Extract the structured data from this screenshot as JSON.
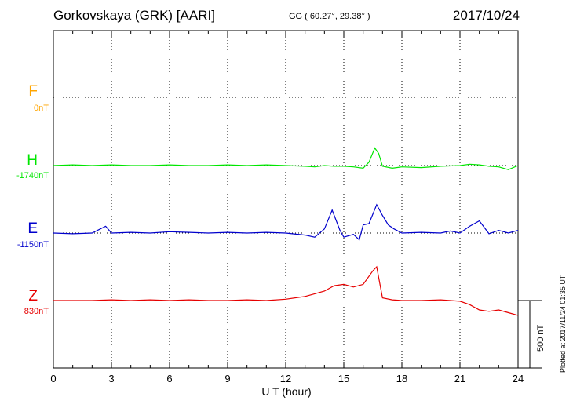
{
  "header": {
    "title": "Gorkovskaya (GRK)  [AARI]",
    "coords": "GG ( 60.27°,  29.38° )",
    "date": "2017/10/24"
  },
  "components": [
    {
      "letter": "F",
      "baseline": "0nT",
      "color": "#ffa500"
    },
    {
      "letter": "H",
      "baseline": "-1740nT",
      "color": "#00e600"
    },
    {
      "letter": "E",
      "baseline": "-1150nT",
      "color": "#0000cc"
    },
    {
      "letter": "Z",
      "baseline": "830nT",
      "color": "#e60000"
    }
  ],
  "footer": {
    "xlabel": "U T (hour)",
    "plotted": "Plotted at 2017/11/24 01:35 UT",
    "scale": "500 nT"
  },
  "chart_data": {
    "type": "line",
    "title": "Gorkovskaya (GRK)  [AARI]",
    "xlabel": "U T (hour)",
    "ylabel": "",
    "xlim": [
      0,
      24
    ],
    "xticks": [
      0,
      3,
      6,
      9,
      12,
      15,
      18,
      21,
      24
    ],
    "grid": true,
    "scale_bar_nT": 500,
    "series": [
      {
        "name": "H",
        "color": "#00e600",
        "x": [
          0,
          1,
          2,
          3,
          4,
          5,
          6,
          7,
          8,
          9,
          10,
          11,
          12,
          13,
          13.5,
          14,
          14.5,
          15,
          15.5,
          16,
          16.3,
          16.6,
          16.8,
          17,
          17.5,
          18,
          19,
          20,
          21,
          21.5,
          22,
          22.5,
          23,
          23.5,
          24
        ],
        "y": [
          -1740,
          -1735,
          -1740,
          -1735,
          -1740,
          -1740,
          -1735,
          -1740,
          -1740,
          -1735,
          -1740,
          -1735,
          -1740,
          -1745,
          -1750,
          -1740,
          -1745,
          -1745,
          -1750,
          -1760,
          -1715,
          -1610,
          -1650,
          -1745,
          -1760,
          -1750,
          -1755,
          -1745,
          -1740,
          -1730,
          -1735,
          -1745,
          -1750,
          -1770,
          -1740
        ]
      },
      {
        "name": "E",
        "color": "#0000cc",
        "x": [
          0,
          1,
          2,
          2.7,
          3,
          4,
          5,
          6,
          7,
          8,
          9,
          10,
          11,
          12,
          13,
          13.5,
          14,
          14.4,
          14.8,
          15,
          15.5,
          15.8,
          16,
          16.3,
          16.7,
          17,
          17.3,
          17.6,
          18,
          19,
          20,
          20.5,
          21,
          21.5,
          22,
          22.5,
          23,
          23.5,
          24
        ],
        "y": [
          -1150,
          -1155,
          -1150,
          -1100,
          -1150,
          -1145,
          -1150,
          -1140,
          -1145,
          -1150,
          -1145,
          -1150,
          -1145,
          -1150,
          -1165,
          -1180,
          -1120,
          -980,
          -1130,
          -1180,
          -1160,
          -1200,
          -1090,
          -1080,
          -940,
          -1020,
          -1090,
          -1120,
          -1150,
          -1145,
          -1150,
          -1135,
          -1150,
          -1100,
          -1060,
          -1155,
          -1130,
          -1150,
          -1130
        ]
      },
      {
        "name": "Z",
        "color": "#e60000",
        "x": [
          0,
          1,
          2,
          3,
          4,
          5,
          6,
          7,
          8,
          9,
          10,
          11,
          12,
          13,
          13.5,
          14,
          14.5,
          15,
          15.5,
          16,
          16.5,
          16.7,
          17,
          17.5,
          18,
          19,
          20,
          21,
          21.5,
          22,
          22.5,
          23,
          23.5,
          24
        ],
        "y": [
          830,
          830,
          830,
          835,
          830,
          835,
          830,
          835,
          830,
          830,
          835,
          830,
          840,
          860,
          880,
          900,
          940,
          950,
          930,
          950,
          1050,
          1080,
          850,
          835,
          830,
          830,
          835,
          825,
          800,
          760,
          750,
          760,
          740,
          720
        ]
      }
    ]
  }
}
